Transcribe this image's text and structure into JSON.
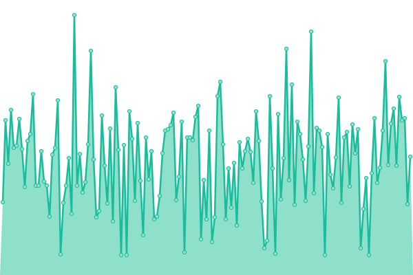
{
  "chart_data": {
    "type": "area",
    "color": "#1abc9c",
    "fill": "#8ee0cb",
    "ylim": [
      0,
      400
    ],
    "values": [
      106,
      225,
      162,
      240,
      185,
      188,
      227,
      183,
      128,
      195,
      205,
      263,
      130,
      130,
      180,
      136,
      130,
      85,
      175,
      185,
      254,
      30,
      105,
      130,
      170,
      89,
      378,
      130,
      176,
      120,
      135,
      190,
      326,
      168,
      84,
      93,
      232,
      159,
      104,
      213,
      78,
      273,
      182,
      29,
      189,
      29,
      238,
      198,
      108,
      221,
      137,
      58,
      200,
      139,
      180,
      81,
      85,
      115,
      177,
      210,
      212,
      218,
      236,
      109,
      143,
      223,
      33,
      200,
      200,
      196,
      230,
      246,
      52,
      138,
      81,
      210,
      48,
      84,
      260,
      281,
      190,
      81,
      155,
      98,
      163,
      72,
      193,
      155,
      180,
      198,
      179,
      134,
      238,
      195,
      107,
      39,
      50,
      260,
      155,
      31,
      234,
      110,
      170,
      329,
      138,
      277,
      102,
      223,
      205,
      168,
      108,
      187,
      354,
      119,
      214,
      210,
      186,
      29,
      205,
      146,
      126,
      171,
      258,
      105,
      200,
      208,
      129,
      219,
      177,
      212,
      39,
      96,
      141,
      29,
      148,
      228,
      134,
      156,
      210,
      311,
      160,
      220,
      242,
      159,
      259,
      225,
      228,
      103,
      172
    ]
  }
}
